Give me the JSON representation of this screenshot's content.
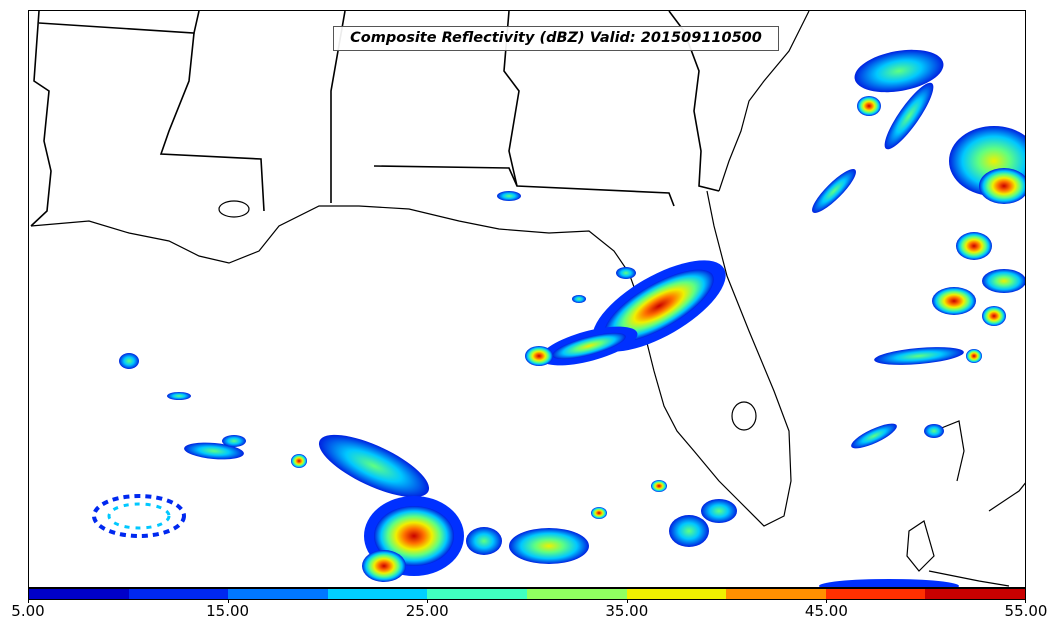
{
  "title": "Composite Reflectivity (dBZ) Valid: 201509110500",
  "colorbar": {
    "colors": [
      "#0000c8",
      "#0028f0",
      "#0078ff",
      "#00d0ff",
      "#40ffc0",
      "#90ff60",
      "#f0f000",
      "#ff9000",
      "#ff3000",
      "#c80000"
    ],
    "tick_labels": [
      "5.00",
      "15.00",
      "25.00",
      "35.00",
      "45.00",
      "55.00"
    ],
    "min": 5,
    "max": 55
  }
}
